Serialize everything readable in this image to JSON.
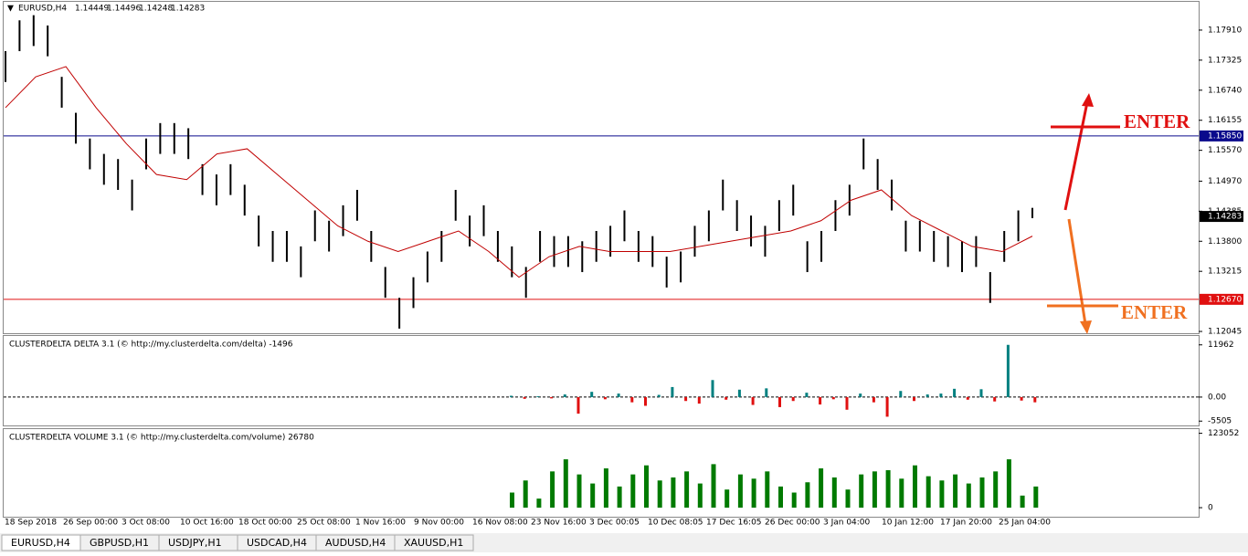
{
  "header": {
    "symbol": "EURUSD,H4",
    "ohlc": [
      1.14449,
      1.14496,
      1.14248,
      1.14283
    ]
  },
  "chart_data": [
    {
      "type": "ohlc",
      "ylim": [
        1.1201,
        1.1846
      ],
      "yticks": [
        {
          "value": 1.1791,
          "label": "1.17910"
        },
        1.17325,
        {
          "value": 1.1674,
          "label": "1.16740"
        },
        1.16155,
        {
          "value": 1.1557,
          "label": "1.15570"
        },
        {
          "value": 1.1497,
          "label": "1.14970"
        },
        1.14385,
        {
          "value": 1.138,
          "label": "1.13800"
        },
        1.13215,
        1.12045
      ],
      "hlines": [
        {
          "value": 1.1585,
          "label": "1.15850",
          "color": "#0a0a8c"
        },
        {
          "value": 1.1267,
          "label": "1.12670",
          "color": "#e01010"
        }
      ],
      "last_price": 1.14283,
      "bar_color": "#000000",
      "ma_color": "#c00000",
      "high": [
        1.175,
        1.181,
        1.182,
        1.18,
        1.17,
        1.163,
        1.158,
        1.155,
        1.154,
        1.15,
        1.158,
        1.161,
        1.161,
        1.16,
        1.153,
        1.151,
        1.153,
        1.149,
        1.143,
        1.14,
        1.14,
        1.137,
        1.144,
        1.142,
        1.145,
        1.148,
        1.14,
        1.133,
        1.127,
        1.131,
        1.136,
        1.14,
        1.148,
        1.143,
        1.145,
        1.14,
        1.137,
        1.133,
        1.14,
        1.139,
        1.139,
        1.138,
        1.14,
        1.141,
        1.144,
        1.14,
        1.139,
        1.135,
        1.136,
        1.141,
        1.144,
        1.15,
        1.146,
        1.143,
        1.141,
        1.146,
        1.149,
        1.138,
        1.14,
        1.146,
        1.149,
        1.158,
        1.154,
        1.15,
        1.142,
        1.142,
        1.14,
        1.139,
        1.138,
        1.139,
        1.132,
        1.14,
        1.144,
        1.1445
      ],
      "low": [
        1.169,
        1.175,
        1.176,
        1.174,
        1.164,
        1.157,
        1.152,
        1.149,
        1.148,
        1.144,
        1.152,
        1.155,
        1.155,
        1.154,
        1.147,
        1.145,
        1.147,
        1.143,
        1.137,
        1.134,
        1.134,
        1.131,
        1.138,
        1.136,
        1.139,
        1.142,
        1.134,
        1.127,
        1.121,
        1.125,
        1.13,
        1.134,
        1.142,
        1.137,
        1.139,
        1.134,
        1.131,
        1.127,
        1.134,
        1.133,
        1.133,
        1.132,
        1.134,
        1.135,
        1.138,
        1.134,
        1.133,
        1.129,
        1.13,
        1.135,
        1.138,
        1.144,
        1.14,
        1.137,
        1.135,
        1.14,
        1.143,
        1.132,
        1.134,
        1.14,
        1.143,
        1.152,
        1.148,
        1.144,
        1.136,
        1.136,
        1.134,
        1.133,
        1.132,
        1.133,
        1.126,
        1.134,
        1.138,
        1.1425
      ],
      "ma": [
        1.164,
        1.17,
        1.172,
        1.164,
        1.157,
        1.151,
        1.15,
        1.155,
        1.156,
        1.151,
        1.146,
        1.141,
        1.138,
        1.136,
        1.138,
        1.14,
        1.136,
        1.131,
        1.135,
        1.137,
        1.136,
        1.136,
        1.136,
        1.137,
        1.138,
        1.139,
        1.14,
        1.142,
        1.146,
        1.148,
        1.143,
        1.14,
        1.137,
        1.136,
        1.139
      ],
      "x_labels": [
        "18 Sep 2018",
        "26 Sep 00:00",
        "3 Oct 08:00",
        "10 Oct 16:00",
        "18 Oct 00:00",
        "25 Oct 08:00",
        "1 Nov 16:00",
        "9 Nov 00:00",
        "16 Nov 08:00",
        "23 Nov 16:00",
        "3 Dec 00:05",
        "10 Dec 08:05",
        "17 Dec 16:05",
        "26 Dec 00:00",
        "3 Jan 04:00",
        "10 Jan 12:00",
        "17 Jan 20:00",
        "25 Jan 04:00"
      ]
    },
    {
      "type": "delta",
      "title": "CLUSTERDELTA DELTA 3.1 (© http://my.clusterdelta.com/delta) -1496",
      "ylim": [
        -6500,
        14000
      ],
      "yticks": [
        11962,
        {
          "value": 0,
          "label": "0.00"
        },
        -5505
      ],
      "pos_color": "#008080",
      "neg_color": "#e01010",
      "values": [
        300,
        -400,
        200,
        -300,
        600,
        -3800,
        1200,
        -500,
        800,
        -1200,
        -2000,
        500,
        2300,
        -900,
        -1500,
        3900,
        -600,
        1700,
        -1800,
        2000,
        -2300,
        -900,
        1000,
        -1700,
        -500,
        -2900,
        800,
        -1200,
        -4500,
        1400,
        -900,
        600,
        800,
        1900,
        -600,
        1800,
        -1000,
        11962,
        -800,
        -1200
      ]
    },
    {
      "type": "volume",
      "title": "CLUSTERDELTA VOLUME 3.1 (© http://my.clusterdelta.com/volume) 26780",
      "ylim": [
        -15000,
        130000
      ],
      "yticks": [
        123052,
        0
      ],
      "color": "#007a00",
      "values": [
        25000,
        45000,
        15000,
        60000,
        80000,
        55000,
        40000,
        65000,
        35000,
        55000,
        70000,
        45000,
        50000,
        60000,
        40000,
        72000,
        30000,
        55000,
        48000,
        60000,
        35000,
        25000,
        42000,
        65000,
        50000,
        30000,
        55000,
        60000,
        62000,
        48000,
        70000,
        52000,
        45000,
        55000,
        40000,
        50000,
        60000,
        80000,
        20000,
        35000
      ]
    }
  ],
  "annotations": {
    "enter_up": "ENTER",
    "enter_down": "ENTER"
  },
  "tabs": [
    "EURUSD,H4",
    "GBPUSD,H1",
    "USDJPY,H1",
    "USDCAD,H4",
    "AUDUSD,H4",
    "XAUUSD,H1"
  ]
}
